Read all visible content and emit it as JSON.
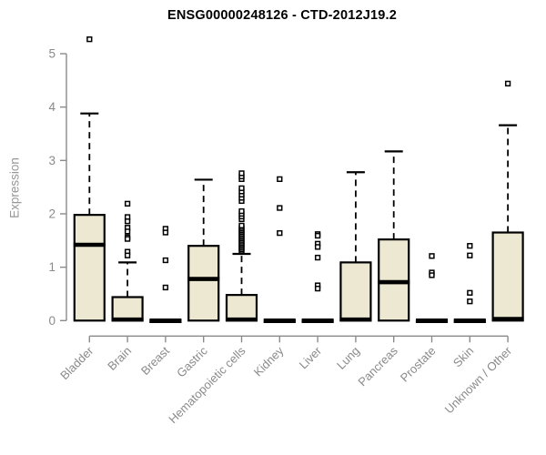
{
  "title": "ENSG00000248126 - CTD-2012J19.2",
  "chart_data": {
    "type": "boxplot",
    "title": "ENSG00000248126 - CTD-2012J19.2",
    "xlabel": "",
    "ylabel": "Expression",
    "ylim": [
      0,
      5.3
    ],
    "yticks": [
      0,
      1,
      2,
      3,
      4,
      5
    ],
    "grid": false,
    "legend": "none",
    "colors": {
      "box_fill": "#EDE8D1",
      "box_border": "#000000",
      "median": "#000000",
      "whisker": "#000000",
      "outlier": "#000000",
      "axis": "#8a8a8a",
      "tick_label": "#8a8a8a",
      "axis_label": "#979797",
      "title": "#000000",
      "background": "#ffffff"
    },
    "categories": [
      {
        "label": "Bladder",
        "whisker_low": 0,
        "q1": 0,
        "median": 1.42,
        "q3": 1.98,
        "whisker_high": 3.88,
        "outliers": [
          5.27
        ]
      },
      {
        "label": "Brain",
        "whisker_low": 0,
        "q1": 0,
        "median": 0.02,
        "q3": 0.44,
        "whisker_high": 1.09,
        "outliers": [
          2.19,
          1.94,
          1.86,
          1.74,
          1.67,
          1.56,
          1.53,
          1.29,
          1.22
        ]
      },
      {
        "label": "Breast",
        "whisker_low": 0,
        "q1": 0,
        "median": 0.0,
        "q3": 0.0,
        "whisker_high": 0.0,
        "outliers": [
          1.72,
          1.65,
          1.13,
          0.62
        ]
      },
      {
        "label": "Gastric",
        "whisker_low": 0,
        "q1": 0,
        "median": 0.78,
        "q3": 1.4,
        "whisker_high": 2.64,
        "outliers": []
      },
      {
        "label": "Hematopoietic cells",
        "whisker_low": 0,
        "q1": 0,
        "median": 0.02,
        "q3": 0.48,
        "whisker_high": 1.25,
        "outliers": [
          1.3,
          1.33,
          1.36,
          1.39,
          1.42,
          1.45,
          1.48,
          1.51,
          1.54,
          1.57,
          1.6,
          1.63,
          1.66,
          1.69,
          1.72,
          1.75,
          1.78,
          1.9,
          1.95,
          2.0,
          2.05,
          2.24,
          2.3,
          2.36,
          2.42,
          2.48,
          2.65,
          2.7,
          2.76
        ]
      },
      {
        "label": "Kidney",
        "whisker_low": 0,
        "q1": 0,
        "median": 0.0,
        "q3": 0.0,
        "whisker_high": 0.0,
        "outliers": [
          2.65,
          2.11,
          1.64
        ]
      },
      {
        "label": "Liver",
        "whisker_low": 0,
        "q1": 0,
        "median": 0.0,
        "q3": 0.0,
        "whisker_high": 0.0,
        "outliers": [
          1.62,
          1.59,
          1.44,
          1.38,
          1.18,
          0.66,
          0.6
        ]
      },
      {
        "label": "Lung",
        "whisker_low": 0,
        "q1": 0,
        "median": 0.02,
        "q3": 1.09,
        "whisker_high": 2.78,
        "outliers": []
      },
      {
        "label": "Pancreas",
        "whisker_low": 0,
        "q1": 0,
        "median": 0.72,
        "q3": 1.52,
        "whisker_high": 3.17,
        "outliers": []
      },
      {
        "label": "Prostate",
        "whisker_low": 0,
        "q1": 0,
        "median": 0.0,
        "q3": 0.0,
        "whisker_high": 0.0,
        "outliers": [
          1.21,
          0.9,
          0.85
        ]
      },
      {
        "label": "Skin",
        "whisker_low": 0,
        "q1": 0,
        "median": 0.0,
        "q3": 0.0,
        "whisker_high": 0.0,
        "outliers": [
          1.4,
          1.22,
          0.52,
          0.36
        ]
      },
      {
        "label": "Unknown / Other",
        "whisker_low": 0,
        "q1": 0,
        "median": 0.03,
        "q3": 1.65,
        "whisker_high": 3.66,
        "outliers": [
          4.44
        ]
      }
    ]
  }
}
